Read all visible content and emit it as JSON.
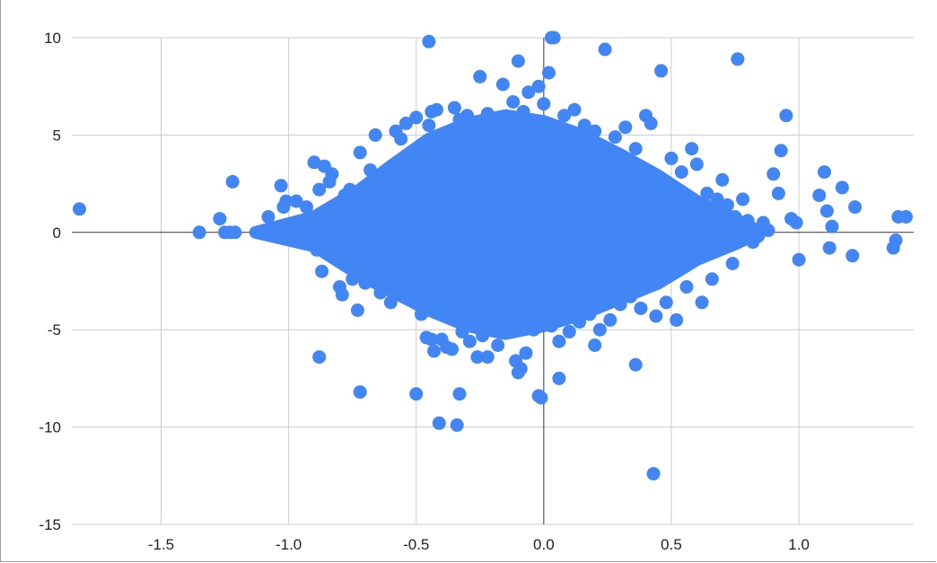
{
  "chart_data": {
    "type": "scatter",
    "title": "",
    "xlabel": "",
    "ylabel": "",
    "xlim": [
      -1.85,
      1.45
    ],
    "ylim": [
      -15,
      10
    ],
    "x_ticks": [
      -1.5,
      -1.0,
      -0.5,
      0.0,
      0.5,
      1.0
    ],
    "x_tick_labels": [
      "-1.5",
      "-1.0",
      "-0.5",
      "0.0",
      "0.5",
      "1.0"
    ],
    "y_ticks": [
      10,
      5,
      0,
      -5,
      -10,
      -15
    ],
    "y_tick_labels": [
      "10",
      "5",
      "0",
      "-5",
      "-10",
      "-15"
    ],
    "grid": true,
    "legend": "none",
    "point_color": "#4285f4",
    "series": [
      {
        "x": [
          -1.82,
          -1.35,
          -1.27,
          -1.25,
          -1.23,
          -1.22,
          -1.21,
          -1.12,
          -1.08,
          -1.06,
          -1.03,
          -1.02,
          -1.01,
          -0.99,
          -0.97,
          -0.96,
          -0.93,
          -0.9,
          -0.89,
          -0.88,
          -0.87,
          -0.86,
          -0.85,
          -0.84,
          -0.83,
          -0.81,
          -0.8,
          -0.79,
          -0.78,
          -0.77,
          -0.76,
          -0.75,
          -0.73,
          -0.72,
          -0.7,
          -0.68,
          -0.66,
          -0.64,
          -0.62,
          -0.6,
          -0.58,
          -0.56,
          -0.55,
          -0.54,
          -0.52,
          -0.5,
          -0.48,
          -0.47,
          -0.46,
          -0.45,
          -0.44,
          -0.43,
          -0.42,
          -0.41,
          -0.4,
          -0.38,
          -0.36,
          -0.35,
          -0.34,
          -0.33,
          -0.32,
          -0.3,
          -0.29,
          -0.28,
          -0.26,
          -0.25,
          -0.24,
          -0.22,
          -0.2,
          -0.18,
          -0.16,
          -0.14,
          -0.12,
          -0.11,
          -0.1,
          -0.09,
          -0.08,
          -0.07,
          -0.06,
          -0.04,
          -0.02,
          -0.01,
          0.0,
          0.02,
          0.03,
          0.04,
          0.06,
          0.08,
          0.1,
          0.12,
          0.14,
          0.16,
          0.18,
          0.2,
          0.22,
          0.24,
          0.26,
          0.28,
          0.3,
          0.32,
          0.34,
          0.36,
          0.38,
          0.4,
          0.42,
          0.44,
          0.46,
          0.48,
          0.5,
          0.52,
          0.54,
          0.56,
          0.58,
          0.6,
          0.62,
          0.64,
          0.66,
          0.68,
          0.7,
          0.72,
          0.74,
          0.75,
          0.76,
          0.78,
          0.8,
          0.82,
          0.84,
          0.86,
          0.88,
          0.9,
          0.92,
          0.93,
          0.95,
          0.97,
          0.99,
          1.0,
          1.08,
          1.1,
          1.11,
          1.12,
          1.13,
          1.17,
          1.21,
          1.22,
          1.37,
          1.38,
          1.39,
          1.42
        ],
        "y": [
          1.2,
          0.0,
          0.7,
          0.0,
          0.0,
          2.6,
          0.0,
          0.0,
          0.8,
          0.0,
          2.4,
          1.3,
          1.6,
          0.0,
          1.6,
          0.0,
          1.3,
          3.6,
          -0.9,
          2.2,
          -2.0,
          3.4,
          0.3,
          2.6,
          3.0,
          -1.4,
          -2.8,
          -3.2,
          1.9,
          -1.2,
          2.2,
          -2.4,
          -4.0,
          4.1,
          -2.6,
          3.2,
          5.0,
          -3.1,
          2.7,
          -3.6,
          5.2,
          4.8,
          -2.9,
          5.6,
          3.1,
          5.9,
          -4.2,
          4.4,
          -5.4,
          5.5,
          6.2,
          -6.1,
          6.3,
          4.8,
          -5.5,
          5.1,
          -6.0,
          6.4,
          -4.5,
          5.8,
          -5.1,
          6.0,
          -5.6,
          4.7,
          -6.4,
          8.0,
          -5.3,
          6.1,
          5.4,
          -5.8,
          7.6,
          -4.9,
          6.7,
          -6.6,
          8.8,
          -7.0,
          6.2,
          -6.2,
          7.2,
          -5.0,
          7.5,
          -8.5,
          6.6,
          8.2,
          -4.8,
          10.0,
          -5.6,
          6.0,
          -5.1,
          6.3,
          -4.6,
          5.5,
          -4.2,
          5.2,
          -5.0,
          9.4,
          -4.5,
          4.9,
          -3.7,
          5.4,
          -3.3,
          4.3,
          -3.9,
          6.0,
          5.6,
          -4.3,
          8.3,
          -3.6,
          3.8,
          -4.5,
          3.1,
          -2.8,
          4.3,
          3.5,
          -3.6,
          2.0,
          -2.4,
          1.7,
          2.7,
          1.4,
          -1.6,
          0.8,
          8.9,
          1.7,
          0.6,
          -0.5,
          -0.2,
          0.5,
          0.1,
          3.0,
          2.0,
          4.2,
          6.0,
          0.7,
          0.5,
          -1.4,
          1.9,
          3.1,
          1.1,
          -0.8,
          0.3,
          2.3,
          -1.2,
          1.3,
          -0.8,
          -0.4,
          0.8,
          0.8
        ],
        "extra_points": [
          [
            -0.45,
            9.8
          ],
          [
            0.03,
            10.0
          ],
          [
            -0.72,
            -8.2
          ],
          [
            -0.5,
            -8.3
          ],
          [
            -0.33,
            -8.3
          ],
          [
            -0.41,
            -9.8
          ],
          [
            -0.34,
            -9.9
          ],
          [
            -0.88,
            -6.4
          ],
          [
            -0.22,
            -6.4
          ],
          [
            0.06,
            -7.5
          ],
          [
            -0.02,
            -8.4
          ],
          [
            0.36,
            -6.8
          ],
          [
            0.43,
            -12.4
          ],
          [
            -0.44,
            -5.5
          ],
          [
            -0.38,
            -5.9
          ],
          [
            -0.1,
            -7.2
          ],
          [
            0.2,
            -5.8
          ]
        ]
      }
    ]
  }
}
